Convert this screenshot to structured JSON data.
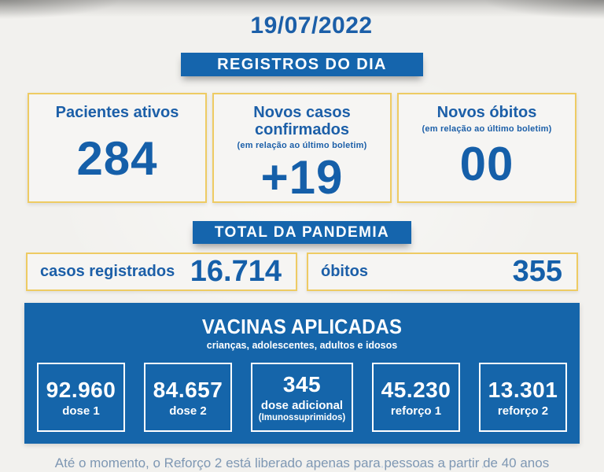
{
  "date": "19/07/2022",
  "registros": {
    "banner": "REGISTROS DO DIA",
    "cards": [
      {
        "title": "Pacientes ativos",
        "subtitle": "",
        "value": "284"
      },
      {
        "title": "Novos casos confirmados",
        "subtitle": "(em relação ao último boletim)",
        "value": "+19"
      },
      {
        "title": "Novos óbitos",
        "subtitle": "(em relação ao último boletim)",
        "value": "00"
      }
    ]
  },
  "pandemia": {
    "banner": "TOTAL DA PANDEMIA",
    "rows": [
      {
        "label": "casos registrados",
        "value": "16.714"
      },
      {
        "label": "óbitos",
        "value": "355"
      }
    ]
  },
  "vacinas": {
    "title": "VACINAS APLICADAS",
    "subtitle": "crianças, adolescentes, adultos e idosos",
    "stats": [
      {
        "value": "92.960",
        "label": "dose 1",
        "sublabel": ""
      },
      {
        "value": "84.657",
        "label": "dose 2",
        "sublabel": ""
      },
      {
        "value": "345",
        "label": "dose adicional",
        "sublabel": "(Imunossuprimidos)"
      },
      {
        "value": "45.230",
        "label": "reforço 1",
        "sublabel": ""
      },
      {
        "value": "13.301",
        "label": "reforço 2",
        "sublabel": ""
      }
    ]
  },
  "footer": {
    "note": "Até o momento, o Reforço 2 está liberado apenas para pessoas a partir de 40 anos"
  },
  "colors": {
    "accent_blue": "#1565ad",
    "panel_blue": "#1565aa",
    "number_blue": "#155fa9",
    "gold_border": "#eecb63",
    "footer_text": "#7e97b3",
    "background": "#f2f1ee"
  }
}
